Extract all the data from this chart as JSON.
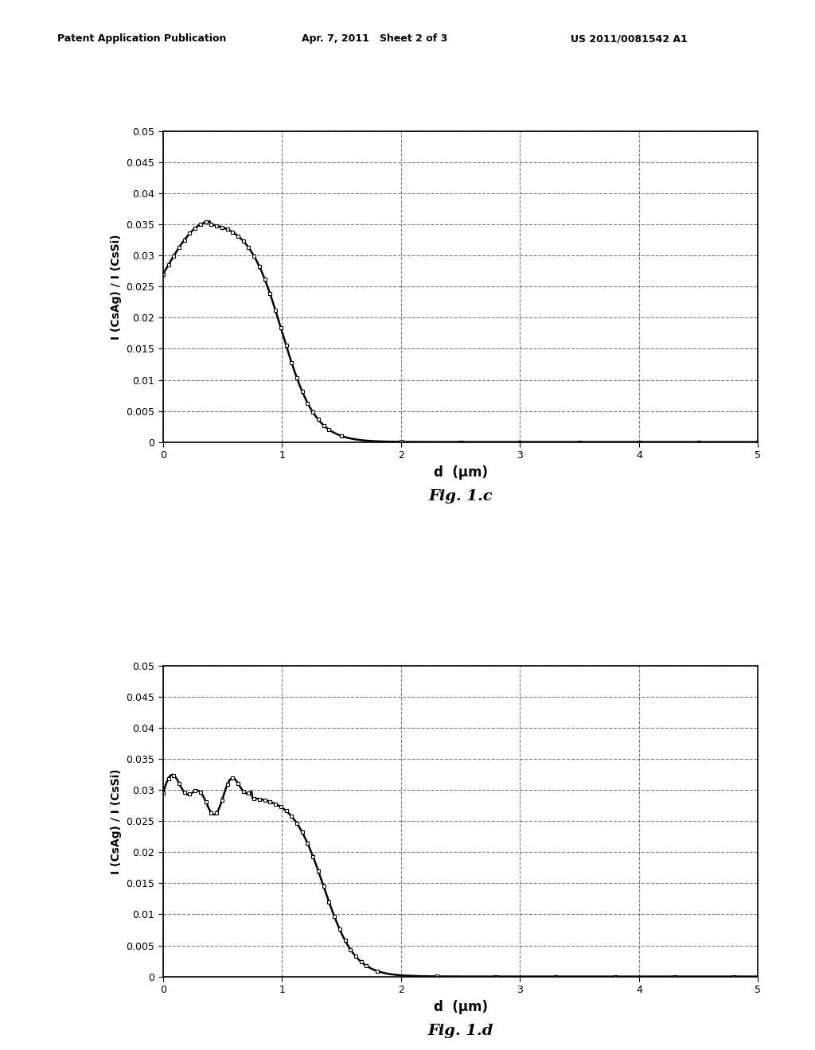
{
  "header_left": "Patent Application Publication",
  "header_center": "Apr. 7, 2011   Sheet 2 of 3",
  "header_right": "US 2011/0081542 A1",
  "fig1c_label": "Fig. 1.c",
  "fig1d_label": "Fig. 1.d",
  "ylabel": "I (CsAg) / I (CsSi)",
  "xlabel": "d  (μm)",
  "xlim": [
    0,
    5
  ],
  "ylim": [
    0,
    0.05
  ],
  "yticks": [
    0,
    0.005,
    0.01,
    0.015,
    0.02,
    0.025,
    0.03,
    0.035,
    0.04,
    0.045,
    0.05
  ],
  "xticks": [
    0,
    1,
    2,
    3,
    4,
    5
  ],
  "background_color": "#ffffff",
  "line_color": "#000000",
  "grid_color": "#444444",
  "marker_size": 3.5,
  "line_width": 1.8
}
